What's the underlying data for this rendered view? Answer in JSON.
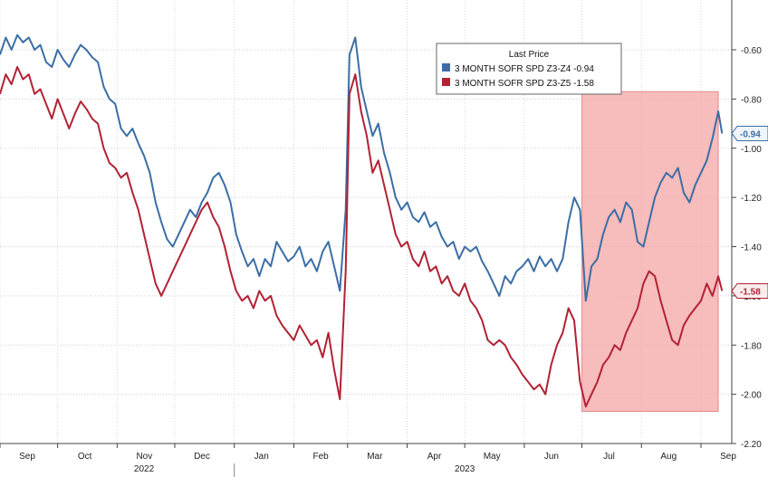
{
  "chart_data": {
    "type": "line",
    "title": "",
    "xlabel": "",
    "ylabel": "",
    "ylim": [
      -2.2,
      -0.5
    ],
    "y_ticks": [
      -0.6,
      -0.8,
      -1.0,
      -1.2,
      -1.4,
      -1.6,
      -1.8,
      -2.0,
      -2.2
    ],
    "y_tick_labels": [
      "-0.60",
      "-0.80",
      "-1.00",
      "-1.20",
      "-1.40",
      "-1.60",
      "-1.80",
      "-2.00",
      "-2.20"
    ],
    "x_months": [
      "Sep",
      "Oct",
      "Nov",
      "Dec",
      "Jan",
      "Feb",
      "Mar",
      "Apr",
      "May",
      "Jun",
      "Jul",
      "Aug",
      "Sep"
    ],
    "x_years": [
      "2022",
      "2023"
    ],
    "grid": true,
    "y_axis_position": "right",
    "legend": {
      "title": "Last Price",
      "placement": "top-center",
      "entries": [
        "3 MONTH SOFR SPD Z3-Z4 -0.94",
        "3 MONTH SOFR SPD Z3-Z5 -1.58"
      ]
    },
    "highlight": {
      "label": "",
      "from": "2023-07-01",
      "to": "2023-09-10",
      "ymin": -2.07,
      "ymax": -0.77,
      "color": "#f4a6a6"
    },
    "series": [
      {
        "name": "3 MONTH SOFR SPD Z3-Z4",
        "last_label": "-0.94",
        "color": "#3b6ea5",
        "points": [
          [
            "2022-09-01",
            -0.62
          ],
          [
            "2022-09-04",
            -0.55
          ],
          [
            "2022-09-07",
            -0.6
          ],
          [
            "2022-09-10",
            -0.54
          ],
          [
            "2022-09-13",
            -0.57
          ],
          [
            "2022-09-16",
            -0.55
          ],
          [
            "2022-09-19",
            -0.6
          ],
          [
            "2022-09-22",
            -0.58
          ],
          [
            "2022-09-25",
            -0.65
          ],
          [
            "2022-09-28",
            -0.67
          ],
          [
            "2022-10-01",
            -0.6
          ],
          [
            "2022-10-04",
            -0.64
          ],
          [
            "2022-10-07",
            -0.67
          ],
          [
            "2022-10-10",
            -0.62
          ],
          [
            "2022-10-13",
            -0.58
          ],
          [
            "2022-10-16",
            -0.6
          ],
          [
            "2022-10-19",
            -0.63
          ],
          [
            "2022-10-22",
            -0.65
          ],
          [
            "2022-10-25",
            -0.75
          ],
          [
            "2022-10-28",
            -0.8
          ],
          [
            "2022-10-31",
            -0.82
          ],
          [
            "2022-11-03",
            -0.92
          ],
          [
            "2022-11-06",
            -0.95
          ],
          [
            "2022-11-09",
            -0.92
          ],
          [
            "2022-11-12",
            -0.98
          ],
          [
            "2022-11-15",
            -1.03
          ],
          [
            "2022-11-18",
            -1.1
          ],
          [
            "2022-11-21",
            -1.22
          ],
          [
            "2022-11-24",
            -1.3
          ],
          [
            "2022-11-27",
            -1.37
          ],
          [
            "2022-11-30",
            -1.4
          ],
          [
            "2022-12-03",
            -1.35
          ],
          [
            "2022-12-06",
            -1.3
          ],
          [
            "2022-12-09",
            -1.25
          ],
          [
            "2022-12-12",
            -1.28
          ],
          [
            "2022-12-15",
            -1.22
          ],
          [
            "2022-12-18",
            -1.18
          ],
          [
            "2022-12-21",
            -1.12
          ],
          [
            "2022-12-24",
            -1.1
          ],
          [
            "2022-12-27",
            -1.15
          ],
          [
            "2022-12-30",
            -1.22
          ],
          [
            "2023-01-02",
            -1.35
          ],
          [
            "2023-01-05",
            -1.42
          ],
          [
            "2023-01-08",
            -1.48
          ],
          [
            "2023-01-11",
            -1.45
          ],
          [
            "2023-01-14",
            -1.52
          ],
          [
            "2023-01-17",
            -1.45
          ],
          [
            "2023-01-20",
            -1.48
          ],
          [
            "2023-01-23",
            -1.38
          ],
          [
            "2023-01-26",
            -1.42
          ],
          [
            "2023-01-29",
            -1.46
          ],
          [
            "2023-02-01",
            -1.44
          ],
          [
            "2023-02-04",
            -1.4
          ],
          [
            "2023-02-07",
            -1.48
          ],
          [
            "2023-02-10",
            -1.45
          ],
          [
            "2023-02-13",
            -1.5
          ],
          [
            "2023-02-16",
            -1.42
          ],
          [
            "2023-02-19",
            -1.38
          ],
          [
            "2023-02-22",
            -1.48
          ],
          [
            "2023-02-25",
            -1.58
          ],
          [
            "2023-02-28",
            -1.25
          ],
          [
            "2023-03-02",
            -0.62
          ],
          [
            "2023-03-05",
            -0.55
          ],
          [
            "2023-03-08",
            -0.75
          ],
          [
            "2023-03-11",
            -0.85
          ],
          [
            "2023-03-14",
            -0.95
          ],
          [
            "2023-03-17",
            -0.9
          ],
          [
            "2023-03-20",
            -1.02
          ],
          [
            "2023-03-23",
            -1.1
          ],
          [
            "2023-03-26",
            -1.2
          ],
          [
            "2023-03-29",
            -1.25
          ],
          [
            "2023-04-01",
            -1.22
          ],
          [
            "2023-04-04",
            -1.28
          ],
          [
            "2023-04-07",
            -1.3
          ],
          [
            "2023-04-10",
            -1.26
          ],
          [
            "2023-04-13",
            -1.32
          ],
          [
            "2023-04-16",
            -1.3
          ],
          [
            "2023-04-19",
            -1.36
          ],
          [
            "2023-04-22",
            -1.4
          ],
          [
            "2023-04-25",
            -1.38
          ],
          [
            "2023-04-28",
            -1.45
          ],
          [
            "2023-05-01",
            -1.4
          ],
          [
            "2023-05-04",
            -1.42
          ],
          [
            "2023-05-07",
            -1.4
          ],
          [
            "2023-05-10",
            -1.46
          ],
          [
            "2023-05-13",
            -1.5
          ],
          [
            "2023-05-16",
            -1.55
          ],
          [
            "2023-05-19",
            -1.6
          ],
          [
            "2023-05-22",
            -1.52
          ],
          [
            "2023-05-25",
            -1.55
          ],
          [
            "2023-05-28",
            -1.5
          ],
          [
            "2023-05-31",
            -1.48
          ],
          [
            "2023-06-03",
            -1.45
          ],
          [
            "2023-06-06",
            -1.5
          ],
          [
            "2023-06-09",
            -1.44
          ],
          [
            "2023-06-12",
            -1.48
          ],
          [
            "2023-06-15",
            -1.45
          ],
          [
            "2023-06-18",
            -1.5
          ],
          [
            "2023-06-21",
            -1.45
          ],
          [
            "2023-06-24",
            -1.3
          ],
          [
            "2023-06-27",
            -1.2
          ],
          [
            "2023-06-30",
            -1.25
          ],
          [
            "2023-07-03",
            -1.62
          ],
          [
            "2023-07-06",
            -1.48
          ],
          [
            "2023-07-09",
            -1.45
          ],
          [
            "2023-07-12",
            -1.35
          ],
          [
            "2023-07-15",
            -1.28
          ],
          [
            "2023-07-18",
            -1.25
          ],
          [
            "2023-07-21",
            -1.3
          ],
          [
            "2023-07-24",
            -1.22
          ],
          [
            "2023-07-27",
            -1.25
          ],
          [
            "2023-07-30",
            -1.38
          ],
          [
            "2023-08-02",
            -1.4
          ],
          [
            "2023-08-05",
            -1.3
          ],
          [
            "2023-08-08",
            -1.2
          ],
          [
            "2023-08-11",
            -1.14
          ],
          [
            "2023-08-14",
            -1.1
          ],
          [
            "2023-08-17",
            -1.12
          ],
          [
            "2023-08-20",
            -1.08
          ],
          [
            "2023-08-23",
            -1.18
          ],
          [
            "2023-08-26",
            -1.22
          ],
          [
            "2023-08-29",
            -1.15
          ],
          [
            "2023-09-01",
            -1.1
          ],
          [
            "2023-09-04",
            -1.05
          ],
          [
            "2023-09-07",
            -0.96
          ],
          [
            "2023-09-10",
            -0.85
          ],
          [
            "2023-09-12",
            -0.94
          ]
        ]
      },
      {
        "name": "3 MONTH SOFR SPD Z3-Z5",
        "last_label": "-1.58",
        "color": "#b22234",
        "points": [
          [
            "2022-09-01",
            -0.78
          ],
          [
            "2022-09-04",
            -0.7
          ],
          [
            "2022-09-07",
            -0.74
          ],
          [
            "2022-09-10",
            -0.67
          ],
          [
            "2022-09-13",
            -0.72
          ],
          [
            "2022-09-16",
            -0.7
          ],
          [
            "2022-09-19",
            -0.78
          ],
          [
            "2022-09-22",
            -0.76
          ],
          [
            "2022-09-25",
            -0.82
          ],
          [
            "2022-09-28",
            -0.88
          ],
          [
            "2022-10-01",
            -0.8
          ],
          [
            "2022-10-04",
            -0.86
          ],
          [
            "2022-10-07",
            -0.92
          ],
          [
            "2022-10-10",
            -0.86
          ],
          [
            "2022-10-13",
            -0.81
          ],
          [
            "2022-10-16",
            -0.84
          ],
          [
            "2022-10-19",
            -0.88
          ],
          [
            "2022-10-22",
            -0.9
          ],
          [
            "2022-10-25",
            -1.0
          ],
          [
            "2022-10-28",
            -1.06
          ],
          [
            "2022-10-31",
            -1.08
          ],
          [
            "2022-11-03",
            -1.12
          ],
          [
            "2022-11-06",
            -1.1
          ],
          [
            "2022-11-09",
            -1.18
          ],
          [
            "2022-11-12",
            -1.25
          ],
          [
            "2022-11-15",
            -1.35
          ],
          [
            "2022-11-18",
            -1.45
          ],
          [
            "2022-11-21",
            -1.55
          ],
          [
            "2022-11-24",
            -1.6
          ],
          [
            "2022-11-27",
            -1.55
          ],
          [
            "2022-11-30",
            -1.5
          ],
          [
            "2022-12-03",
            -1.45
          ],
          [
            "2022-12-06",
            -1.4
          ],
          [
            "2022-12-09",
            -1.35
          ],
          [
            "2022-12-12",
            -1.3
          ],
          [
            "2022-12-15",
            -1.25
          ],
          [
            "2022-12-18",
            -1.22
          ],
          [
            "2022-12-21",
            -1.28
          ],
          [
            "2022-12-24",
            -1.32
          ],
          [
            "2022-12-27",
            -1.4
          ],
          [
            "2022-12-30",
            -1.5
          ],
          [
            "2023-01-02",
            -1.58
          ],
          [
            "2023-01-05",
            -1.62
          ],
          [
            "2023-01-08",
            -1.6
          ],
          [
            "2023-01-11",
            -1.65
          ],
          [
            "2023-01-14",
            -1.58
          ],
          [
            "2023-01-17",
            -1.62
          ],
          [
            "2023-01-20",
            -1.6
          ],
          [
            "2023-01-23",
            -1.68
          ],
          [
            "2023-01-26",
            -1.72
          ],
          [
            "2023-01-29",
            -1.75
          ],
          [
            "2023-02-01",
            -1.78
          ],
          [
            "2023-02-04",
            -1.72
          ],
          [
            "2023-02-07",
            -1.76
          ],
          [
            "2023-02-10",
            -1.8
          ],
          [
            "2023-02-13",
            -1.78
          ],
          [
            "2023-02-16",
            -1.85
          ],
          [
            "2023-02-19",
            -1.75
          ],
          [
            "2023-02-22",
            -1.9
          ],
          [
            "2023-02-25",
            -2.02
          ],
          [
            "2023-02-28",
            -1.5
          ],
          [
            "2023-03-02",
            -0.78
          ],
          [
            "2023-03-05",
            -0.7
          ],
          [
            "2023-03-08",
            -0.85
          ],
          [
            "2023-03-11",
            -0.95
          ],
          [
            "2023-03-14",
            -1.1
          ],
          [
            "2023-03-17",
            -1.05
          ],
          [
            "2023-03-20",
            -1.15
          ],
          [
            "2023-03-23",
            -1.25
          ],
          [
            "2023-03-26",
            -1.35
          ],
          [
            "2023-03-29",
            -1.4
          ],
          [
            "2023-04-01",
            -1.38
          ],
          [
            "2023-04-04",
            -1.45
          ],
          [
            "2023-04-07",
            -1.48
          ],
          [
            "2023-04-10",
            -1.42
          ],
          [
            "2023-04-13",
            -1.5
          ],
          [
            "2023-04-16",
            -1.48
          ],
          [
            "2023-04-19",
            -1.55
          ],
          [
            "2023-04-22",
            -1.52
          ],
          [
            "2023-04-25",
            -1.58
          ],
          [
            "2023-04-28",
            -1.6
          ],
          [
            "2023-05-01",
            -1.55
          ],
          [
            "2023-05-04",
            -1.62
          ],
          [
            "2023-05-07",
            -1.65
          ],
          [
            "2023-05-10",
            -1.7
          ],
          [
            "2023-05-13",
            -1.78
          ],
          [
            "2023-05-16",
            -1.8
          ],
          [
            "2023-05-19",
            -1.78
          ],
          [
            "2023-05-22",
            -1.8
          ],
          [
            "2023-05-25",
            -1.85
          ],
          [
            "2023-05-28",
            -1.88
          ],
          [
            "2023-05-31",
            -1.92
          ],
          [
            "2023-06-03",
            -1.95
          ],
          [
            "2023-06-06",
            -1.98
          ],
          [
            "2023-06-09",
            -1.96
          ],
          [
            "2023-06-12",
            -2.0
          ],
          [
            "2023-06-15",
            -1.88
          ],
          [
            "2023-06-18",
            -1.8
          ],
          [
            "2023-06-21",
            -1.75
          ],
          [
            "2023-06-24",
            -1.65
          ],
          [
            "2023-06-27",
            -1.7
          ],
          [
            "2023-06-30",
            -1.95
          ],
          [
            "2023-07-03",
            -2.05
          ],
          [
            "2023-07-06",
            -2.0
          ],
          [
            "2023-07-09",
            -1.95
          ],
          [
            "2023-07-12",
            -1.88
          ],
          [
            "2023-07-15",
            -1.85
          ],
          [
            "2023-07-18",
            -1.8
          ],
          [
            "2023-07-21",
            -1.82
          ],
          [
            "2023-07-24",
            -1.75
          ],
          [
            "2023-07-27",
            -1.7
          ],
          [
            "2023-07-30",
            -1.65
          ],
          [
            "2023-08-02",
            -1.55
          ],
          [
            "2023-08-05",
            -1.5
          ],
          [
            "2023-08-08",
            -1.52
          ],
          [
            "2023-08-11",
            -1.62
          ],
          [
            "2023-08-14",
            -1.7
          ],
          [
            "2023-08-17",
            -1.78
          ],
          [
            "2023-08-20",
            -1.8
          ],
          [
            "2023-08-23",
            -1.72
          ],
          [
            "2023-08-26",
            -1.68
          ],
          [
            "2023-08-29",
            -1.65
          ],
          [
            "2023-09-01",
            -1.62
          ],
          [
            "2023-09-04",
            -1.55
          ],
          [
            "2023-09-07",
            -1.6
          ],
          [
            "2023-09-10",
            -1.52
          ],
          [
            "2023-09-12",
            -1.58
          ]
        ]
      }
    ]
  }
}
